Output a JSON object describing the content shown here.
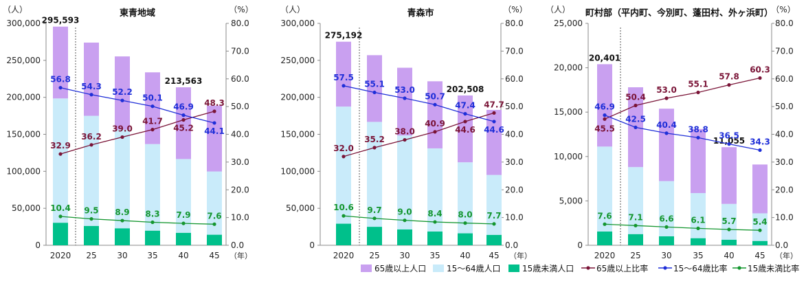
{
  "year_unit": "（年）",
  "chart_data": [
    {
      "type": "bar",
      "title": "東青地域",
      "y_left_unit": "（人）",
      "y_right_unit": "（%）",
      "categories": [
        "2020",
        "25",
        "30",
        "35",
        "40",
        "45"
      ],
      "ylim": [
        0,
        300000
      ],
      "y2lim": [
        0,
        80
      ],
      "y_ticks": [
        "0",
        "50,000",
        "100,000",
        "150,000",
        "200,000",
        "250,000",
        "300,000"
      ],
      "y2_ticks": [
        "0.0",
        "10.0",
        "20.0",
        "30.0",
        "40.0",
        "50.0",
        "60.0",
        "70.0",
        "80.0"
      ],
      "stacked_series": [
        {
          "name": "15歳未満人口",
          "color": "#00c08b",
          "values": [
            30500,
            26200,
            23000,
            19800,
            16900,
            14300
          ]
        },
        {
          "name": "15～64歳人口",
          "color": "#c9ebfa",
          "values": [
            168000,
            148800,
            133300,
            117000,
            99700,
            85500
          ]
        },
        {
          "name": "65歳以上人口",
          "color": "#c9a0f0",
          "values": [
            97093,
            99000,
            99000,
            97000,
            96963,
            89000
          ]
        }
      ],
      "totals": [
        295593,
        null,
        null,
        null,
        213563,
        null
      ],
      "total_labels": [
        "295,593",
        "",
        "",
        "",
        "213,563",
        ""
      ],
      "line_series": [
        {
          "name": "65歳以上比率",
          "color": "#7a1437",
          "values": [
            32.9,
            36.2,
            39.0,
            41.7,
            45.2,
            48.3
          ],
          "labels": [
            "32.9",
            "36.2",
            "39.0",
            "41.7",
            "45.2",
            "48.3"
          ]
        },
        {
          "name": "15～64歳比率",
          "color": "#1f2fd8",
          "values": [
            56.8,
            54.3,
            52.2,
            50.1,
            46.9,
            44.1
          ],
          "labels": [
            "56.8",
            "54.3",
            "52.2",
            "50.1",
            "46.9",
            "44.1"
          ]
        },
        {
          "name": "15歳未満比率",
          "color": "#14962f",
          "values": [
            10.4,
            9.5,
            8.9,
            8.3,
            7.9,
            7.6
          ],
          "labels": [
            "10.4",
            "9.5",
            "8.9",
            "8.3",
            "7.9",
            "7.6"
          ]
        }
      ]
    },
    {
      "type": "bar",
      "title": "青森市",
      "y_left_unit": "（人）",
      "y_right_unit": "（%）",
      "categories": [
        "2020",
        "25",
        "30",
        "35",
        "40",
        "45"
      ],
      "ylim": [
        0,
        300000
      ],
      "y2lim": [
        0,
        80
      ],
      "y_ticks": [
        "0",
        "50,000",
        "100,000",
        "150,000",
        "200,000",
        "250,000",
        "300,000"
      ],
      "y2_ticks": [
        "0.0",
        "10.0",
        "20.0",
        "30.0",
        "40.0",
        "50.0",
        "60.0",
        "70.0",
        "80.0"
      ],
      "stacked_series": [
        {
          "name": "15歳未満人口",
          "color": "#00c08b",
          "values": [
            29200,
            25000,
            21500,
            18600,
            16200,
            14100
          ]
        },
        {
          "name": "15～64歳人口",
          "color": "#c9ebfa",
          "values": [
            158300,
            141800,
            126900,
            112400,
            96000,
            81000
          ]
        },
        {
          "name": "65歳以上人口",
          "color": "#c9a0f0",
          "values": [
            87692,
            90200,
            91600,
            90700,
            90308,
            87900
          ]
        }
      ],
      "totals": [
        275192,
        null,
        null,
        null,
        202508,
        null
      ],
      "total_labels": [
        "275,192",
        "",
        "",
        "",
        "202,508",
        ""
      ],
      "line_series": [
        {
          "name": "65歳以上比率",
          "color": "#7a1437",
          "values": [
            32.0,
            35.2,
            38.0,
            40.9,
            44.6,
            47.7
          ],
          "labels": [
            "32.0",
            "35.2",
            "38.0",
            "40.9",
            "44.6",
            "47.7"
          ]
        },
        {
          "name": "15～64歳比率",
          "color": "#1f2fd8",
          "values": [
            57.5,
            55.1,
            53.0,
            50.7,
            47.4,
            44.6
          ],
          "labels": [
            "57.5",
            "55.1",
            "53.0",
            "50.7",
            "47.4",
            "44.6"
          ]
        },
        {
          "name": "15歳未満比率",
          "color": "#14962f",
          "values": [
            10.6,
            9.7,
            9.0,
            8.4,
            8.0,
            7.7
          ],
          "labels": [
            "10.6",
            "9.7",
            "9.0",
            "8.4",
            "8.0",
            "7.7"
          ]
        }
      ]
    },
    {
      "type": "bar",
      "title": "町村部（平内町、今別町、蓬田村、外ヶ浜町）",
      "y_left_unit": "（人）",
      "y_right_unit": "（%）",
      "categories": [
        "2020",
        "25",
        "30",
        "35",
        "40",
        "45"
      ],
      "ylim": [
        0,
        25000
      ],
      "y2lim": [
        0,
        80
      ],
      "y_ticks": [
        "0",
        "5,000",
        "10,000",
        "15,000",
        "20,000",
        "25,000"
      ],
      "y2_ticks": [
        "0.0",
        "10.0",
        "20.0",
        "30.0",
        "40.0",
        "50.0",
        "60.0",
        "70.0",
        "80.0"
      ],
      "stacked_series": [
        {
          "name": "15歳未満人口",
          "color": "#00c08b",
          "values": [
            1550,
            1260,
            1010,
            800,
            630,
            490
          ]
        },
        {
          "name": "15～64歳人口",
          "color": "#c9ebfa",
          "values": [
            9570,
            7550,
            6220,
            5080,
            4030,
            3110
          ]
        },
        {
          "name": "65歳以上人口",
          "color": "#c9a0f0",
          "values": [
            9281,
            8990,
            8160,
            7220,
            6395,
            5500
          ]
        }
      ],
      "totals": [
        20401,
        null,
        null,
        null,
        11055,
        null
      ],
      "total_labels": [
        "20,401",
        "",
        "",
        "",
        "11,055",
        ""
      ],
      "line_series": [
        {
          "name": "65歳以上比率",
          "color": "#7a1437",
          "values": [
            45.5,
            50.4,
            53.0,
            55.1,
            57.8,
            60.3
          ],
          "labels": [
            "45.5",
            "50.4",
            "53.0",
            "55.1",
            "57.8",
            "60.3"
          ]
        },
        {
          "name": "15～64歳比率",
          "color": "#1f2fd8",
          "values": [
            46.9,
            42.5,
            40.4,
            38.8,
            36.5,
            34.3
          ],
          "labels": [
            "46.9",
            "42.5",
            "40.4",
            "38.8",
            "36.5",
            "34.3"
          ]
        },
        {
          "name": "15歳未満比率",
          "color": "#14962f",
          "values": [
            7.6,
            7.1,
            6.6,
            6.1,
            5.7,
            5.4
          ],
          "labels": [
            "7.6",
            "7.1",
            "6.6",
            "6.1",
            "5.7",
            "5.4"
          ]
        }
      ]
    }
  ],
  "legend": [
    {
      "label": "65歳以上人口",
      "kind": "box",
      "color": "#c9a0f0"
    },
    {
      "label": "15～64歳人口",
      "kind": "box",
      "color": "#c9ebfa"
    },
    {
      "label": "15歳未満人口",
      "kind": "box",
      "color": "#00c08b"
    },
    {
      "label": "65歳以上比率",
      "kind": "line",
      "color": "#7a1437"
    },
    {
      "label": "15～64歳比率",
      "kind": "line",
      "color": "#1f2fd8"
    },
    {
      "label": "15歳未満比率",
      "kind": "line",
      "color": "#14962f"
    }
  ]
}
